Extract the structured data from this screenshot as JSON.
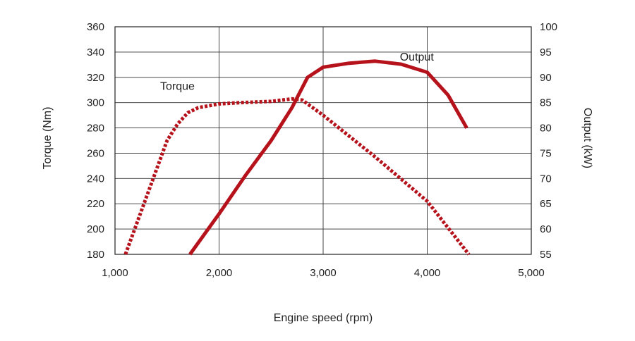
{
  "chart_data": {
    "type": "line",
    "title": "",
    "xlabel": "Engine speed (rpm)",
    "ylabel_left": "Torque (Nm)",
    "ylabel_right": "Output (kW)",
    "xlim": [
      1000,
      5000
    ],
    "ylim_left": [
      180,
      360
    ],
    "ylim_right": [
      55,
      100
    ],
    "grid": true,
    "x_ticks": [
      1000,
      2000,
      3000,
      4000,
      5000
    ],
    "x_tick_labels": [
      "1,000",
      "2,000",
      "3,000",
      "4,000",
      "5,000"
    ],
    "y_left_ticks": [
      180,
      200,
      220,
      240,
      260,
      280,
      300,
      320,
      340,
      360
    ],
    "y_left_tick_labels": [
      "180",
      "200",
      "220",
      "240",
      "260",
      "280",
      "300",
      "320",
      "340",
      "360"
    ],
    "y_right_ticks": [
      55,
      60,
      65,
      70,
      75,
      80,
      85,
      90,
      95,
      100
    ],
    "y_right_tick_labels": [
      "55",
      "60",
      "65",
      "70",
      "75",
      "80",
      "85",
      "90",
      "95",
      "100"
    ],
    "series_color": "#b5121b",
    "series": [
      {
        "name": "Torque",
        "axis": "left",
        "style": "dashed",
        "label_anchor": {
          "x": 1600,
          "y": 313
        },
        "x": [
          1100,
          1300,
          1500,
          1600,
          1700,
          1800,
          2000,
          2200,
          2500,
          2700,
          2800,
          3000,
          3500,
          4000,
          4400
        ],
        "y": [
          180,
          225,
          270,
          283,
          292,
          296,
          299,
          300,
          301,
          303,
          302,
          290,
          257,
          222,
          180
        ]
      },
      {
        "name": "Output",
        "axis": "right",
        "style": "solid",
        "label_anchor": {
          "x": 3900,
          "y": 94
        },
        "x": [
          1720,
          2000,
          2250,
          2500,
          2700,
          2850,
          3000,
          3250,
          3500,
          3750,
          4000,
          4200,
          4380
        ],
        "y": [
          55,
          63,
          70.5,
          77.5,
          84,
          90,
          92,
          92.8,
          93.2,
          92.6,
          91,
          86.5,
          80
        ]
      }
    ]
  }
}
